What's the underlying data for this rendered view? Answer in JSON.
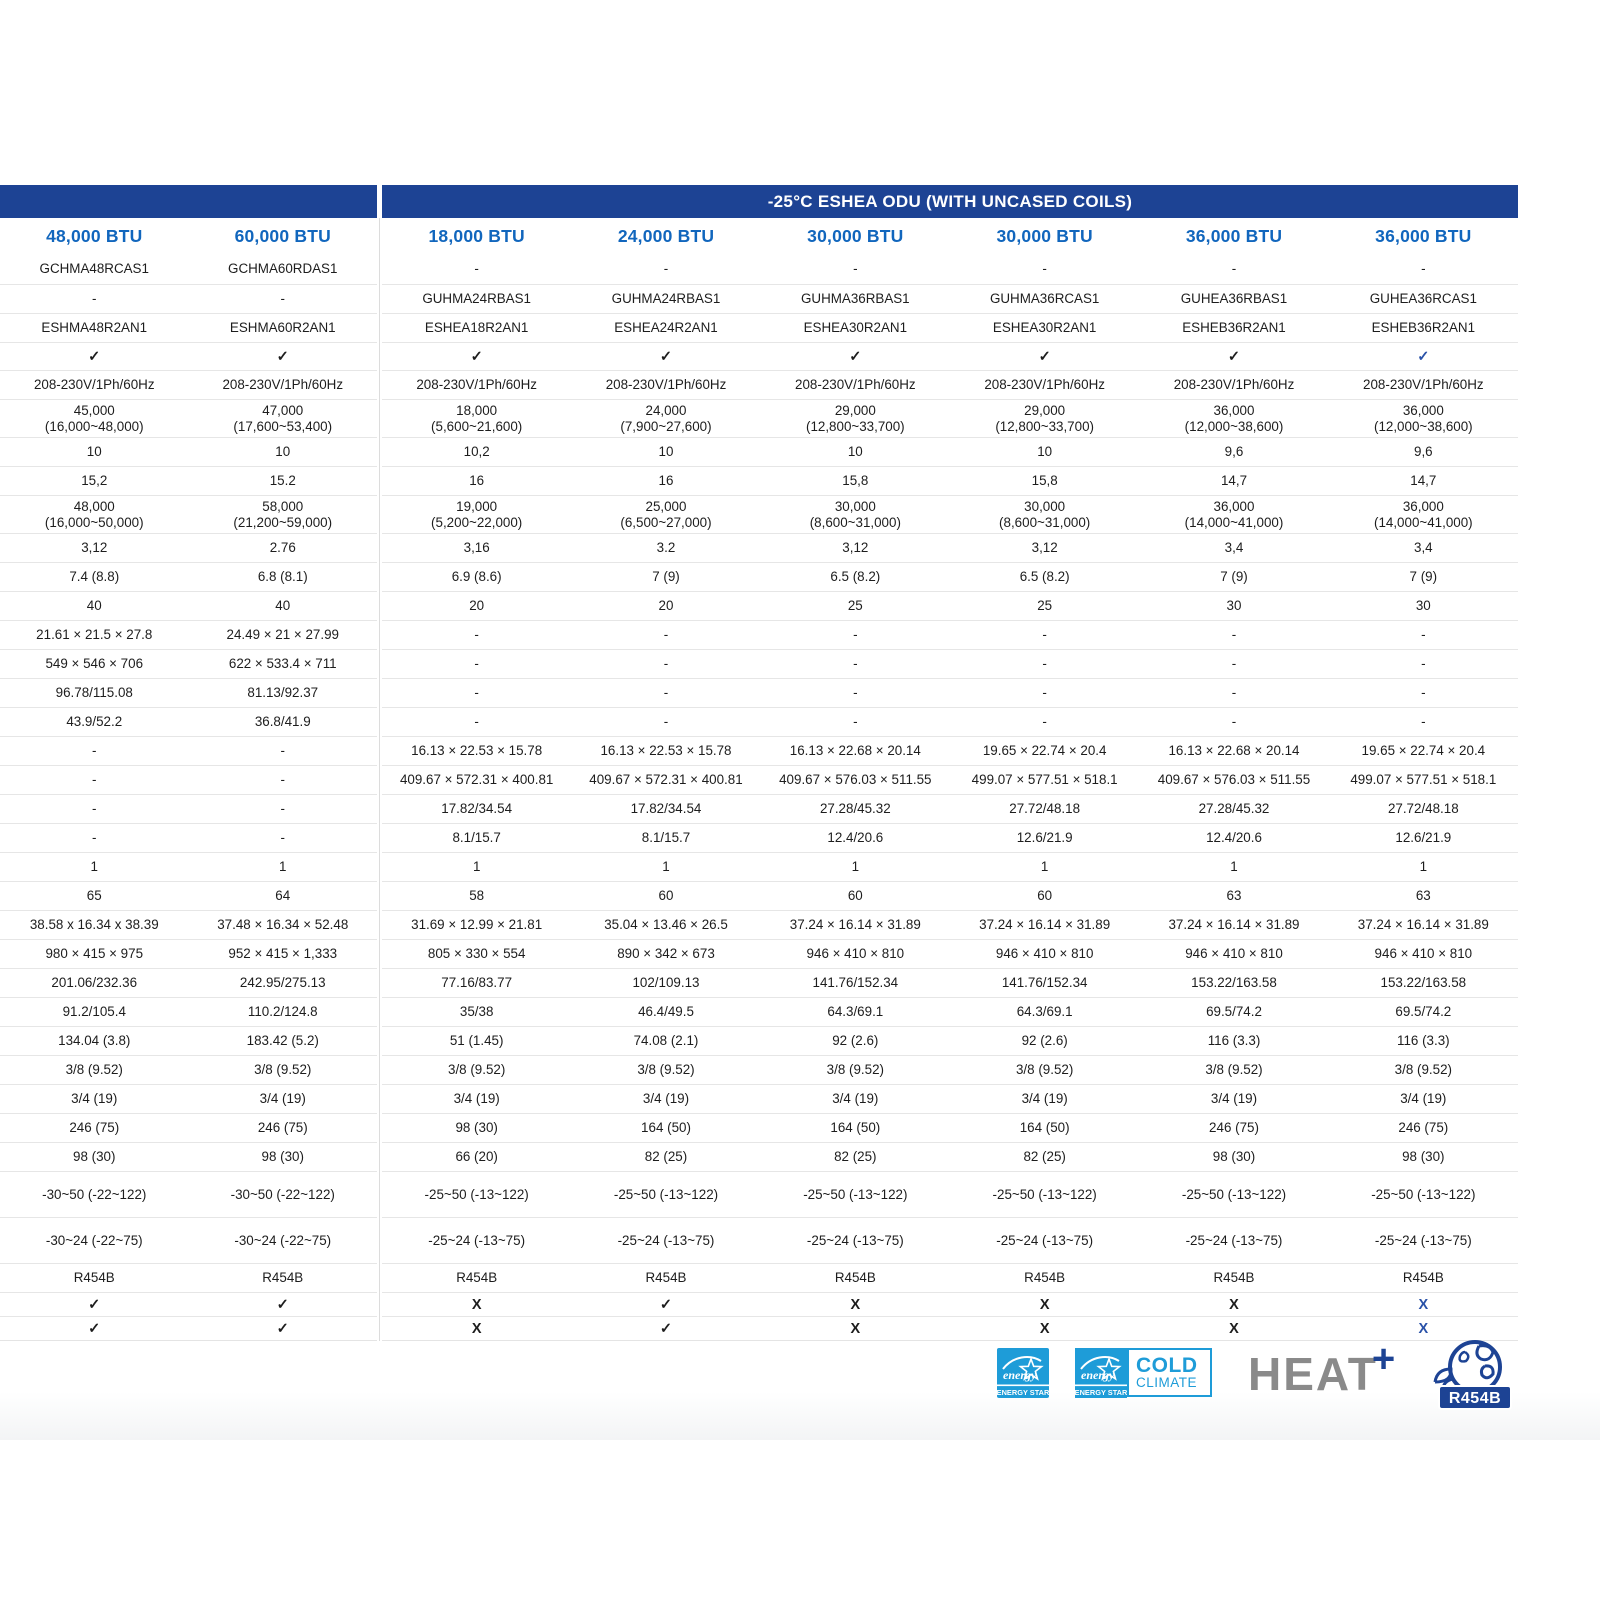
{
  "header": {
    "left_title": "",
    "right_title": "-25°C ESHEA ODU (WITH UNCASED COILS)"
  },
  "marks": {
    "check": "✓",
    "x": "X"
  },
  "rows_meta": [
    "btu",
    "model",
    "s",
    "s",
    "mark",
    "s",
    "d2",
    "s",
    "s",
    "d2",
    "s",
    "s",
    "s",
    "s",
    "s",
    "s",
    "s",
    "s",
    "s",
    "s",
    "s",
    "s",
    "s",
    "s",
    "s",
    "s",
    "s",
    "s",
    "s",
    "s",
    "s",
    "s",
    "tall",
    "tall",
    "s",
    "mark2",
    "mark2"
  ],
  "columns": [
    {
      "accent": false,
      "values": [
        "48,000 BTU",
        "GCHMA48RCAS1",
        "-",
        "ESHMA48R2AN1",
        "check",
        "208-230V/1Ph/60Hz",
        "45,000\n(16,000~48,000)",
        "10",
        "15,2",
        "48,000\n(16,000~50,000)",
        "3,12",
        "7.4 (8.8)",
        "40",
        "21.61 × 21.5 × 27.8",
        "549 × 546 × 706",
        "96.78/115.08",
        "43.9/52.2",
        "-",
        "-",
        "-",
        "-",
        "1",
        "65",
        "38.58 x 16.34 x 38.39",
        "980 × 415 × 975",
        "201.06/232.36",
        "91.2/105.4",
        "134.04 (3.8)",
        "3/8 (9.52)",
        "3/4 (19)",
        "246 (75)",
        "98 (30)",
        "-30~50 (-22~122)",
        "-30~24 (-22~75)",
        "R454B",
        "check",
        "check"
      ]
    },
    {
      "accent": false,
      "values": [
        "60,000 BTU",
        "GCHMA60RDAS1",
        "-",
        "ESHMA60R2AN1",
        "check",
        "208-230V/1Ph/60Hz",
        "47,000\n(17,600~53,400)",
        "10",
        "15.2",
        "58,000\n(21,200~59,000)",
        "2.76",
        "6.8 (8.1)",
        "40",
        "24.49 × 21 × 27.99",
        "622 × 533.4 × 711",
        "81.13/92.37",
        "36.8/41.9",
        "-",
        "-",
        "-",
        "-",
        "1",
        "64",
        "37.48 × 16.34 × 52.48",
        "952 × 415 × 1,333",
        "242.95/275.13",
        "110.2/124.8",
        "183.42 (5.2)",
        "3/8 (9.52)",
        "3/4 (19)",
        "246 (75)",
        "98 (30)",
        "-30~50 (-22~122)",
        "-30~24 (-22~75)",
        "R454B",
        "check",
        "check"
      ]
    },
    {
      "accent": false,
      "values": [
        "18,000 BTU",
        "-",
        "GUHMA24RBAS1",
        "ESHEA18R2AN1",
        "check",
        "208-230V/1Ph/60Hz",
        "18,000\n(5,600~21,600)",
        "10,2",
        "16",
        "19,000\n(5,200~22,000)",
        "3,16",
        "6.9 (8.6)",
        "20",
        "-",
        "-",
        "-",
        "-",
        "16.13 × 22.53 × 15.78",
        "409.67 × 572.31 × 400.81",
        "17.82/34.54",
        "8.1/15.7",
        "1",
        "58",
        "31.69 × 12.99 × 21.81",
        "805 × 330 × 554",
        "77.16/83.77",
        "35/38",
        "51 (1.45)",
        "3/8 (9.52)",
        "3/4 (19)",
        "98 (30)",
        "66 (20)",
        "-25~50 (-13~122)",
        "-25~24 (-13~75)",
        "R454B",
        "x",
        "x"
      ]
    },
    {
      "accent": false,
      "values": [
        "24,000 BTU",
        "-",
        "GUHMA24RBAS1",
        "ESHEA24R2AN1",
        "check",
        "208-230V/1Ph/60Hz",
        "24,000\n(7,900~27,600)",
        "10",
        "16",
        "25,000\n(6,500~27,000)",
        "3.2",
        "7 (9)",
        "20",
        "-",
        "-",
        "-",
        "-",
        "16.13 × 22.53 × 15.78",
        "409.67 × 572.31 × 400.81",
        "17.82/34.54",
        "8.1/15.7",
        "1",
        "60",
        "35.04 × 13.46 × 26.5",
        "890 × 342 × 673",
        "102/109.13",
        "46.4/49.5",
        "74.08 (2.1)",
        "3/8 (9.52)",
        "3/4 (19)",
        "164 (50)",
        "82 (25)",
        "-25~50 (-13~122)",
        "-25~24 (-13~75)",
        "R454B",
        "check",
        "check"
      ]
    },
    {
      "accent": false,
      "values": [
        "30,000 BTU",
        "-",
        "GUHMA36RBAS1",
        "ESHEA30R2AN1",
        "check",
        "208-230V/1Ph/60Hz",
        "29,000\n(12,800~33,700)",
        "10",
        "15,8",
        "30,000\n(8,600~31,000)",
        "3,12",
        "6.5 (8.2)",
        "25",
        "-",
        "-",
        "-",
        "-",
        "16.13 × 22.68 × 20.14",
        "409.67 × 576.03 × 511.55",
        "27.28/45.32",
        "12.4/20.6",
        "1",
        "60",
        "37.24 × 16.14 × 31.89",
        "946 × 410 × 810",
        "141.76/152.34",
        "64.3/69.1",
        "92 (2.6)",
        "3/8 (9.52)",
        "3/4 (19)",
        "164 (50)",
        "82 (25)",
        "-25~50 (-13~122)",
        "-25~24 (-13~75)",
        "R454B",
        "x",
        "x"
      ]
    },
    {
      "accent": false,
      "values": [
        "30,000 BTU",
        "-",
        "GUHMA36RCAS1",
        "ESHEA30R2AN1",
        "check",
        "208-230V/1Ph/60Hz",
        "29,000\n(12,800~33,700)",
        "10",
        "15,8",
        "30,000\n(8,600~31,000)",
        "3,12",
        "6.5 (8.2)",
        "25",
        "-",
        "-",
        "-",
        "-",
        "19.65 × 22.74 × 20.4",
        "499.07 × 577.51 × 518.1",
        "27.72/48.18",
        "12.6/21.9",
        "1",
        "60",
        "37.24 × 16.14 × 31.89",
        "946 × 410 × 810",
        "141.76/152.34",
        "64.3/69.1",
        "92 (2.6)",
        "3/8 (9.52)",
        "3/4 (19)",
        "164 (50)",
        "82 (25)",
        "-25~50 (-13~122)",
        "-25~24 (-13~75)",
        "R454B",
        "x",
        "x"
      ]
    },
    {
      "accent": false,
      "values": [
        "36,000 BTU",
        "-",
        "GUHEA36RBAS1",
        "ESHEB36R2AN1",
        "check",
        "208-230V/1Ph/60Hz",
        "36,000\n(12,000~38,600)",
        "9,6",
        "14,7",
        "36,000\n(14,000~41,000)",
        "3,4",
        "7 (9)",
        "30",
        "-",
        "-",
        "-",
        "-",
        "16.13 × 22.68 × 20.14",
        "409.67 × 576.03 × 511.55",
        "27.28/45.32",
        "12.4/20.6",
        "1",
        "63",
        "37.24 × 16.14 × 31.89",
        "946 × 410 × 810",
        "153.22/163.58",
        "69.5/74.2",
        "116 (3.3)",
        "3/8 (9.52)",
        "3/4 (19)",
        "246 (75)",
        "98 (30)",
        "-25~50 (-13~122)",
        "-25~24 (-13~75)",
        "R454B",
        "x",
        "x"
      ]
    },
    {
      "accent": true,
      "values": [
        "36,000 BTU",
        "-",
        "GUHEA36RCAS1",
        "ESHEB36R2AN1",
        "check",
        "208-230V/1Ph/60Hz",
        "36,000\n(12,000~38,600)",
        "9,6",
        "14,7",
        "36,000\n(14,000~41,000)",
        "3,4",
        "7 (9)",
        "30",
        "-",
        "-",
        "-",
        "-",
        "19.65 × 22.74 × 20.4",
        "499.07 × 577.51 × 518.1",
        "27.72/48.18",
        "12.6/21.9",
        "1",
        "63",
        "37.24 × 16.14 × 31.89",
        "946 × 410 × 810",
        "153.22/163.58",
        "69.5/74.2",
        "116 (3.3)",
        "3/8 (9.52)",
        "3/4 (19)",
        "246 (75)",
        "98 (30)",
        "-25~50 (-13~122)",
        "-25~24 (-13~75)",
        "R454B",
        "x",
        "x"
      ]
    }
  ],
  "footer": {
    "energy_star_label": "ENERGY STAR",
    "energy_script": "energy",
    "cold_line1": "COLD",
    "cold_line2": "CLIMATE",
    "heat_text": "HEAT",
    "heat_plus": "+",
    "r454b_label": "R454B"
  },
  "colors": {
    "header_bar": "#1d4394",
    "btu_text": "#1166bd",
    "accent_mark": "#2a52a8",
    "energy_star_blue": "#1e9cd8",
    "heat_gray": "#8a8a8a"
  }
}
